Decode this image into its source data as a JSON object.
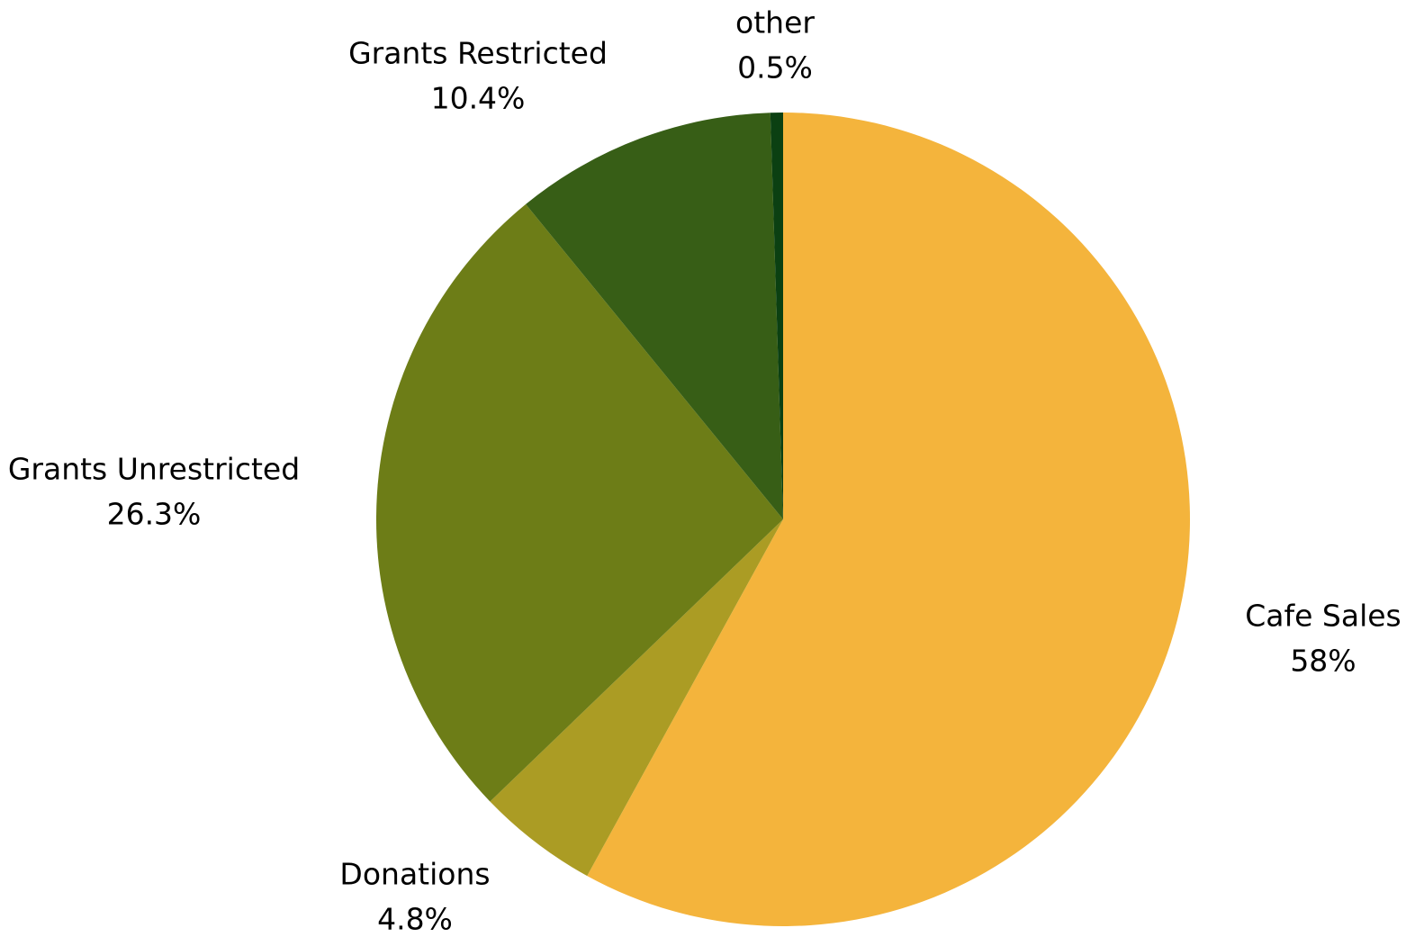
{
  "chart_data": {
    "type": "pie",
    "title": "",
    "start_angle_deg": 0,
    "direction": "clockwise",
    "slices": [
      {
        "name": "Cafe Sales",
        "value": 58,
        "display": "58%",
        "color": "#F4B43C"
      },
      {
        "name": "Donations",
        "value": 4.8,
        "display": "4.8%",
        "color": "#AB9C24"
      },
      {
        "name": "Grants Unrestricted",
        "value": 26.3,
        "display": "26.3%",
        "color": "#6D7D17"
      },
      {
        "name": "Grants Restricted",
        "value": 10.4,
        "display": "10.4%",
        "color": "#375E16"
      },
      {
        "name": "other",
        "value": 0.5,
        "display": "0.5%",
        "color": "#0B4012"
      }
    ]
  }
}
